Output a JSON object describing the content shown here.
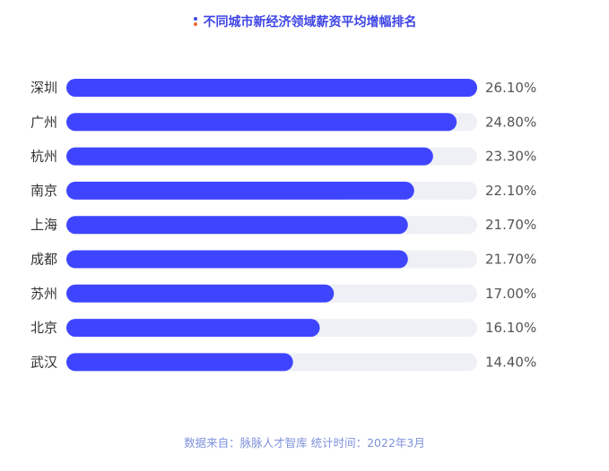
{
  "chart_data": {
    "type": "bar",
    "orientation": "horizontal",
    "title": "不同城市新经济领域薪资平均增幅排名",
    "categories": [
      "深圳",
      "广州",
      "杭州",
      "南京",
      "上海",
      "成都",
      "苏州",
      "北京",
      "武汉"
    ],
    "values": [
      26.1,
      24.8,
      23.3,
      22.1,
      21.7,
      21.7,
      17.0,
      16.1,
      14.4
    ],
    "value_labels": [
      "26.10%",
      "24.80%",
      "23.30%",
      "22.10%",
      "21.70%",
      "21.70%",
      "17.00%",
      "16.10%",
      "14.40%"
    ],
    "unit": "%",
    "xlim": [
      0,
      26.1
    ],
    "grid": false,
    "legend": "none",
    "colors": {
      "bar": "#3f45ff",
      "track": "#eef0f5",
      "title": "#3f45e6",
      "accent_dot": "#f06a2a"
    }
  },
  "source": "数据来自：脉脉人才智库   统计时间：2022年3月"
}
